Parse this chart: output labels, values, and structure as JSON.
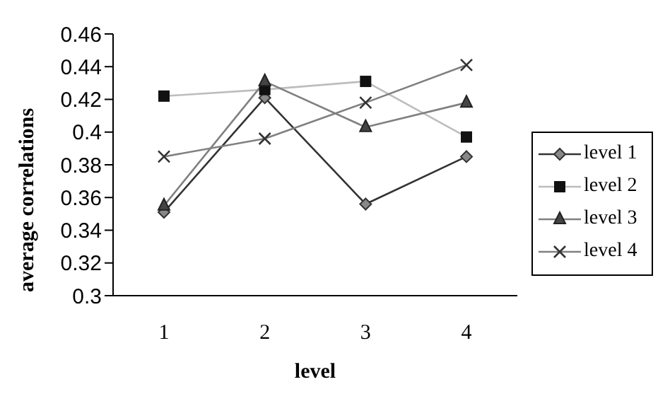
{
  "chart_data": {
    "type": "line",
    "xlabel": "level",
    "ylabel": "average correlations",
    "categories": [
      "1",
      "2",
      "3",
      "4"
    ],
    "series": [
      {
        "name": "level 1",
        "color": "#333333",
        "marker": "diamond",
        "values": [
          0.351,
          0.421,
          0.356,
          0.385
        ]
      },
      {
        "name": "level 2",
        "color": "#bdbdbd",
        "marker": "square",
        "values": [
          0.422,
          0.426,
          0.431,
          0.397
        ]
      },
      {
        "name": "level 3",
        "color": "#808080",
        "marker": "triangle",
        "values": [
          0.355,
          0.431,
          0.403,
          0.418
        ]
      },
      {
        "name": "level 4",
        "color": "#808080",
        "marker": "cross",
        "values": [
          0.385,
          0.396,
          0.418,
          0.441
        ]
      }
    ],
    "ylim": [
      0.3,
      0.46
    ],
    "yticks": [
      0.3,
      0.32,
      0.34,
      0.36,
      0.38,
      0.4,
      0.42,
      0.44,
      0.46
    ],
    "grid": false,
    "legend": "right"
  }
}
